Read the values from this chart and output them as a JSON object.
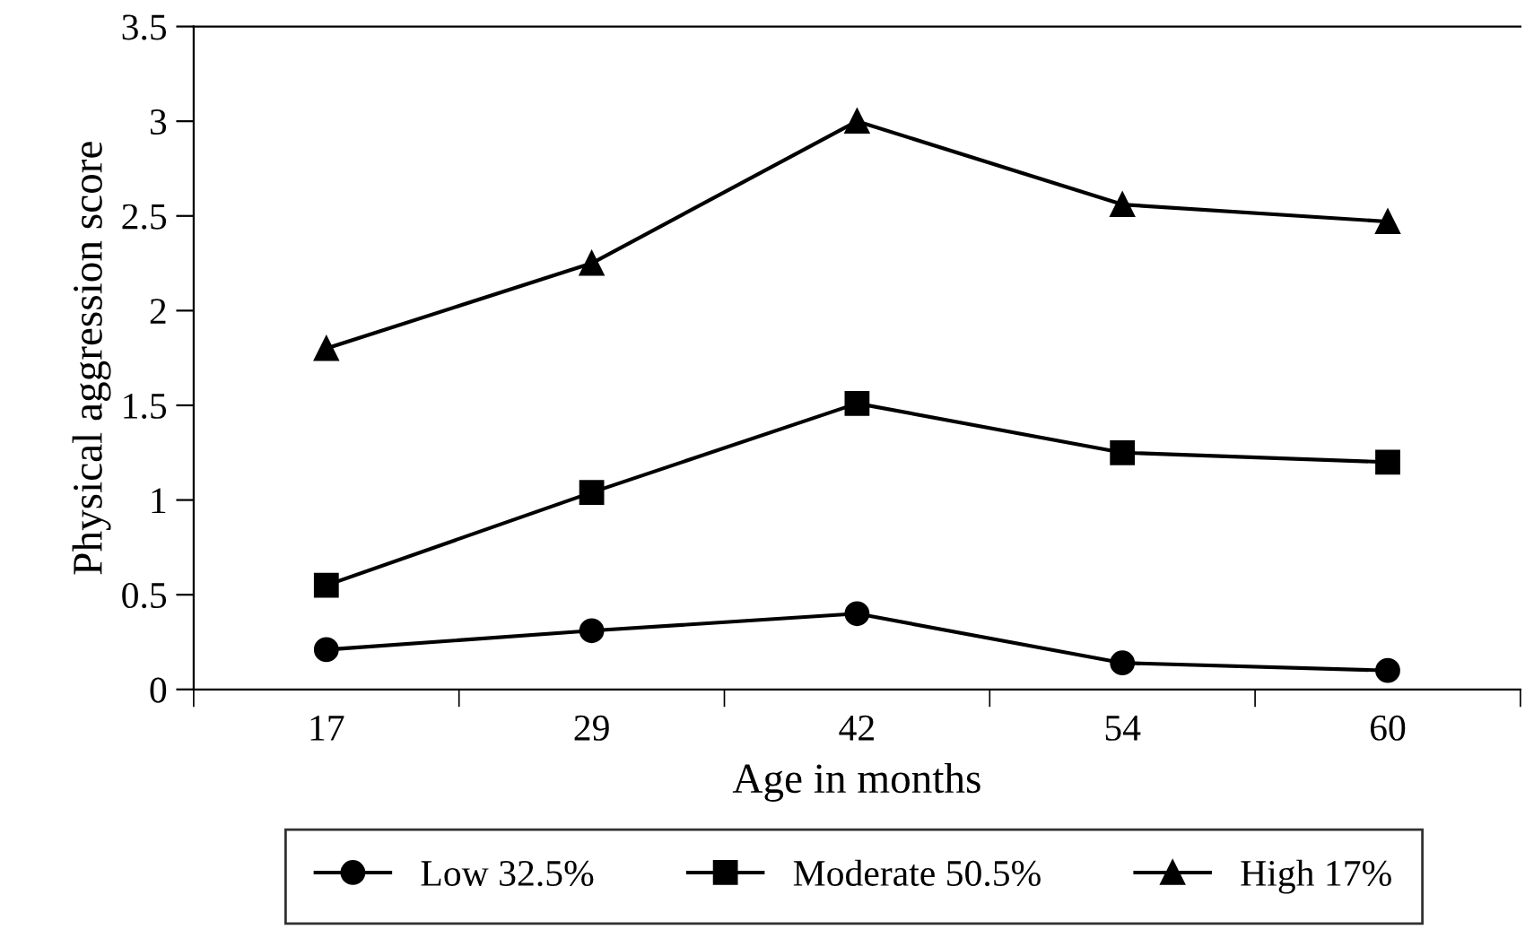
{
  "chart_data": {
    "type": "line",
    "xlabel": "Age in months",
    "ylabel": "Physical aggression score",
    "categories": [
      "17",
      "29",
      "42",
      "54",
      "60"
    ],
    "series": [
      {
        "name": "Low 32.5%",
        "color": "#000000",
        "marker": "circle",
        "values": [
          0.21,
          0.31,
          0.4,
          0.14,
          0.1
        ]
      },
      {
        "name": "Moderate 50.5%",
        "color": "#000000",
        "marker": "square",
        "values": [
          0.55,
          1.04,
          1.51,
          1.25,
          1.2
        ]
      },
      {
        "name": "High 17%",
        "color": "#000000",
        "marker": "triangle",
        "values": [
          1.8,
          2.25,
          3.0,
          2.56,
          2.47
        ]
      }
    ],
    "ylim": [
      0,
      3.5
    ],
    "yticks": [
      0,
      0.5,
      1,
      1.5,
      2,
      2.5,
      3,
      3.5
    ],
    "grid": false,
    "legend": "bottom",
    "line_style": "solid"
  }
}
